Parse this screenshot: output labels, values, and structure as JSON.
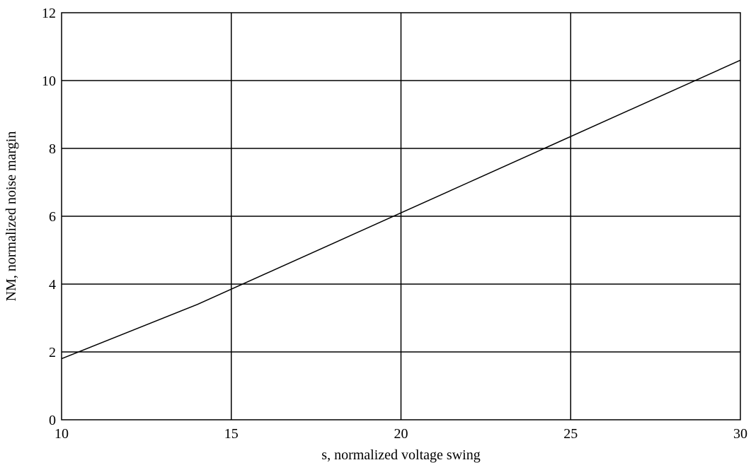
{
  "chart_data": {
    "type": "line",
    "title": "",
    "xlabel": "s, normalized voltage swing",
    "ylabel": "NM, normalized noise margin",
    "xlim": [
      10,
      30
    ],
    "ylim": [
      0,
      12
    ],
    "xticks": [
      "10",
      "15",
      "20",
      "25",
      "30"
    ],
    "yticks": [
      "0",
      "2",
      "4",
      "6",
      "8",
      "10",
      "12"
    ],
    "grid": true,
    "legend": "none",
    "series": [
      {
        "x": [
          10,
          12,
          14,
          16,
          18,
          20,
          22,
          24,
          26,
          28,
          30
        ],
        "values": [
          1.8,
          2.6,
          3.4,
          4.3,
          5.2,
          6.1,
          7.0,
          7.9,
          8.8,
          9.7,
          10.6
        ],
        "color": "#000000"
      }
    ]
  }
}
